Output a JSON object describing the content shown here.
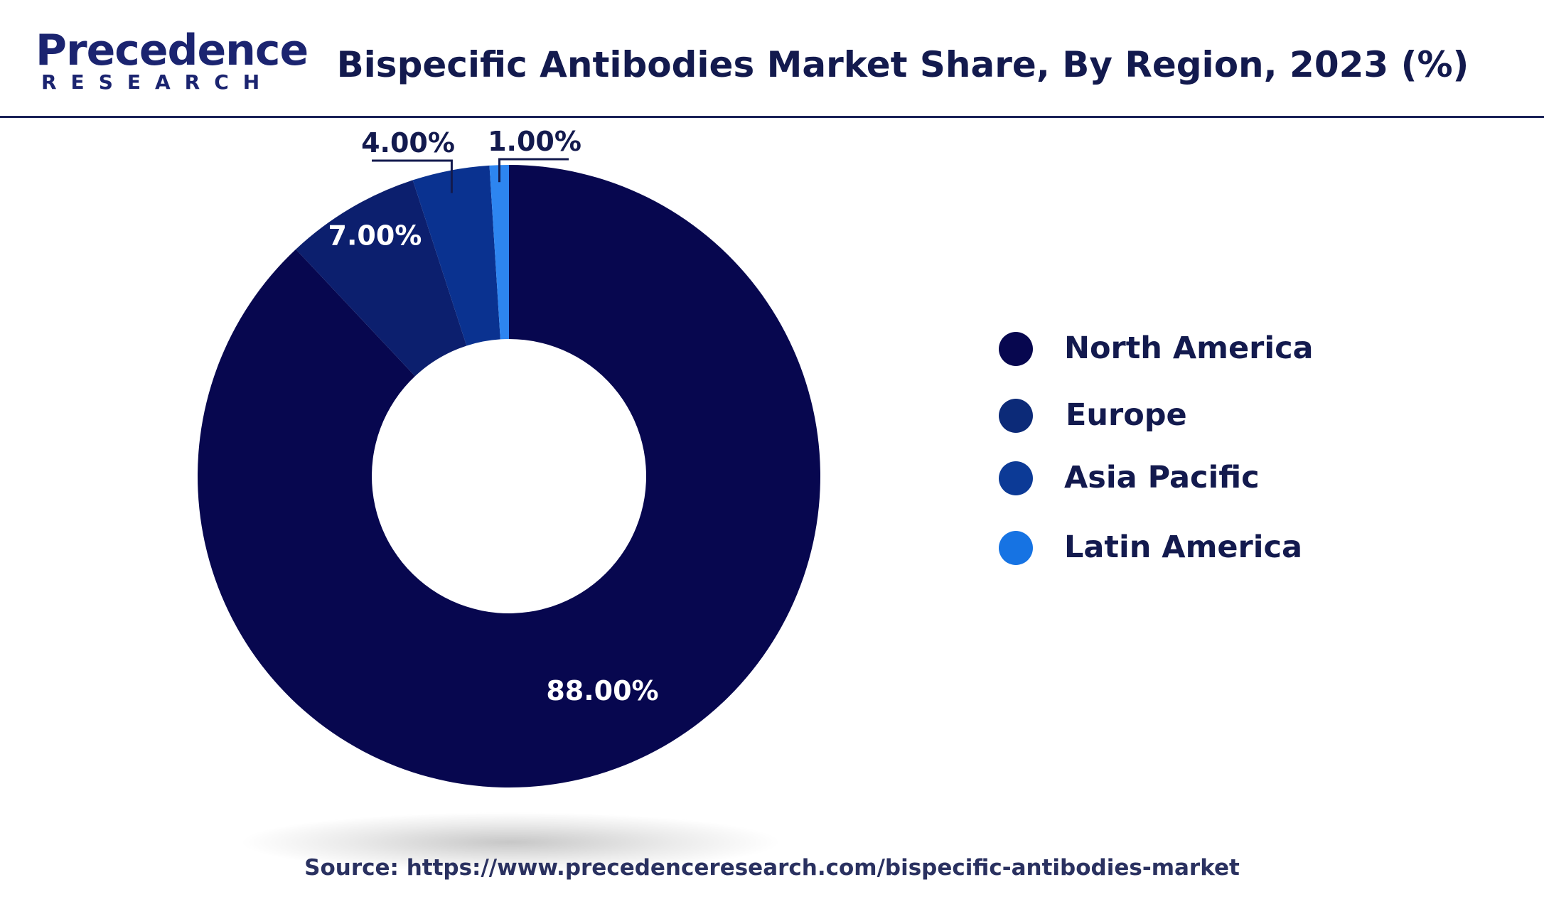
{
  "header": {
    "logo_main": "Precedence",
    "logo_sub": "RESEARCH",
    "title": "Bispecific Antibodies Market Share, By Region, 2023 (%)"
  },
  "chart_data": {
    "type": "pie",
    "variant": "donut",
    "title": "Bispecific Antibodies Market Share, By Region, 2023 (%)",
    "categories": [
      "North America",
      "Europe",
      "Asia Pacific",
      "Latin America"
    ],
    "values": [
      88,
      7,
      4,
      1
    ],
    "data_labels": [
      "88.00%",
      "7.00%",
      "4.00%",
      "1.00%"
    ],
    "colors": [
      "#07074f",
      "#0c1f6e",
      "#0a3290",
      "#2d85f0"
    ],
    "legend_position": "right"
  },
  "legend": {
    "items": [
      {
        "label": "North America",
        "color": "#07074f"
      },
      {
        "label": "Europe",
        "color": "#0c2a78"
      },
      {
        "label": "Asia Pacific",
        "color": "#0c3a96"
      },
      {
        "label": "Latin America",
        "color": "#1673e3"
      }
    ]
  },
  "source": "Source: https://www.precedenceresearch.com/bispecific-antibodies-market"
}
